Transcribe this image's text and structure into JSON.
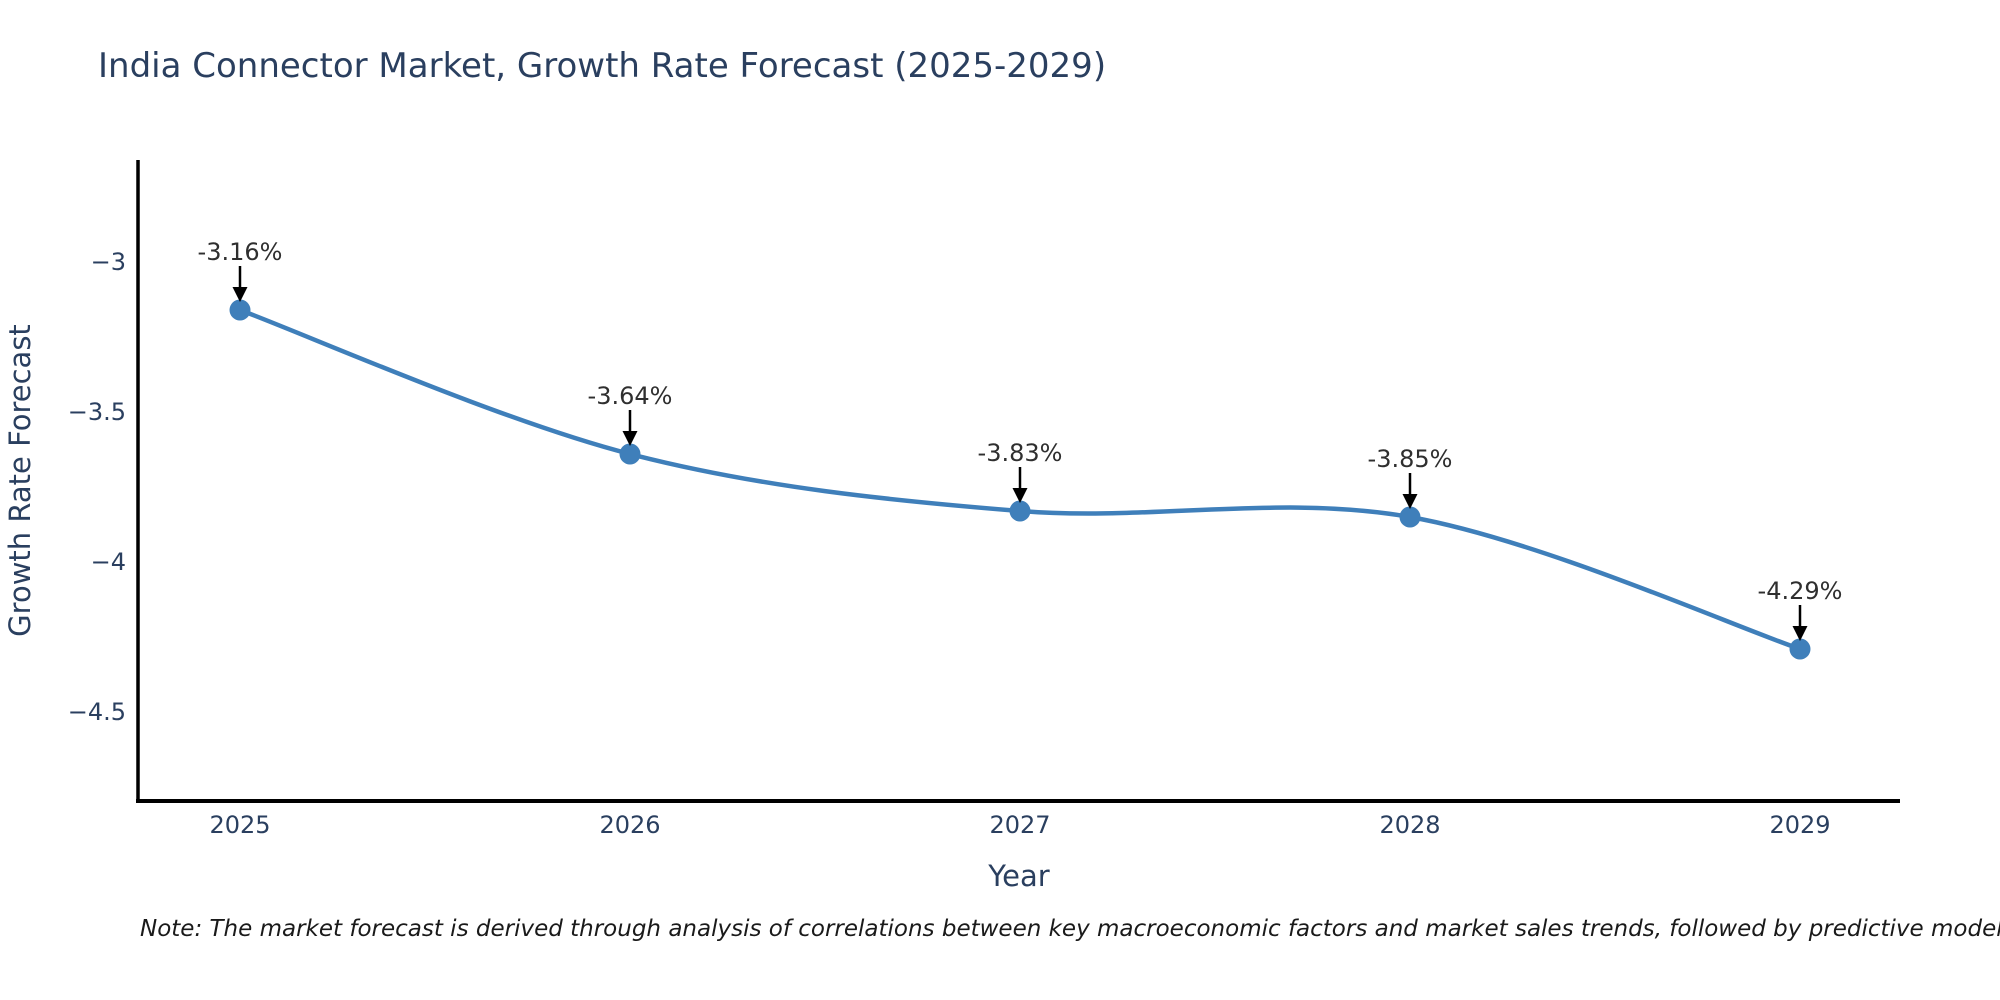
{
  "title": "India Connector Market, Growth Rate Forecast (2025-2029)",
  "note": "Note: The market forecast is derived through analysis of correlations between key macroeconomic factors and market sales trends, followed by predictive modeling to project future sales",
  "chart_data": {
    "type": "line",
    "line_shape": "spline",
    "x": [
      2025,
      2026,
      2027,
      2028,
      2029
    ],
    "y": [
      -3.16,
      -3.64,
      -3.83,
      -3.85,
      -4.29
    ],
    "point_labels": [
      "-3.16%",
      "-3.64%",
      "-3.83%",
      "-3.85%",
      "-4.29%"
    ],
    "title": "India Connector Market, Growth Rate Forecast (2025-2029)",
    "xlabel": "Year",
    "ylabel": "Growth Rate Forecast",
    "x_tick_labels": [
      "2025",
      "2026",
      "2027",
      "2028",
      "2029"
    ],
    "x_tick_values": [
      2025,
      2026,
      2027,
      2028,
      2029
    ],
    "y_tick_labels": [
      "−3",
      "−3.5",
      "−4",
      "−4.5"
    ],
    "y_tick_values": [
      -3,
      -3.5,
      -4,
      -4.5
    ],
    "xlim": [
      2024.74,
      2029.26
    ],
    "ylim": [
      -4.8,
      -2.66
    ],
    "grid": false,
    "legend": false,
    "line_color": "#3f7fba",
    "marker_color": "#3f7fba",
    "annotation_text_color": "#2f2f2f",
    "annotation_arrow_color": "#000000",
    "axis_line_color": "#000000",
    "tick_text_color": "#2a3f5f",
    "axis_title_color": "#2a3f5f"
  }
}
